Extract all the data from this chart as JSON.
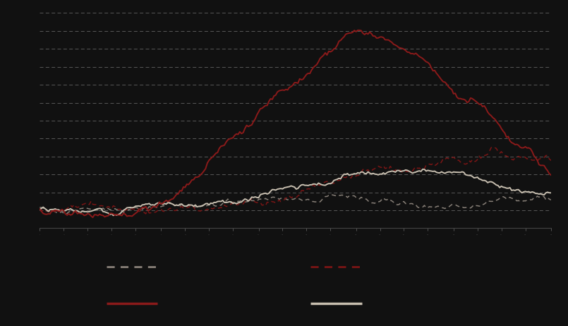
{
  "background_color": "#111111",
  "plot_bg_color": "#111111",
  "grid_color": "#ffffff",
  "n_points": 300,
  "dark_dash_color": "#888078",
  "red_dash_color": "#7a1515",
  "red_solid_color": "#8b1a1a",
  "gray_solid_color": "#c8bfb0",
  "grid_alpha": 0.35,
  "grid_lw": 0.6,
  "n_gridlines": 12
}
